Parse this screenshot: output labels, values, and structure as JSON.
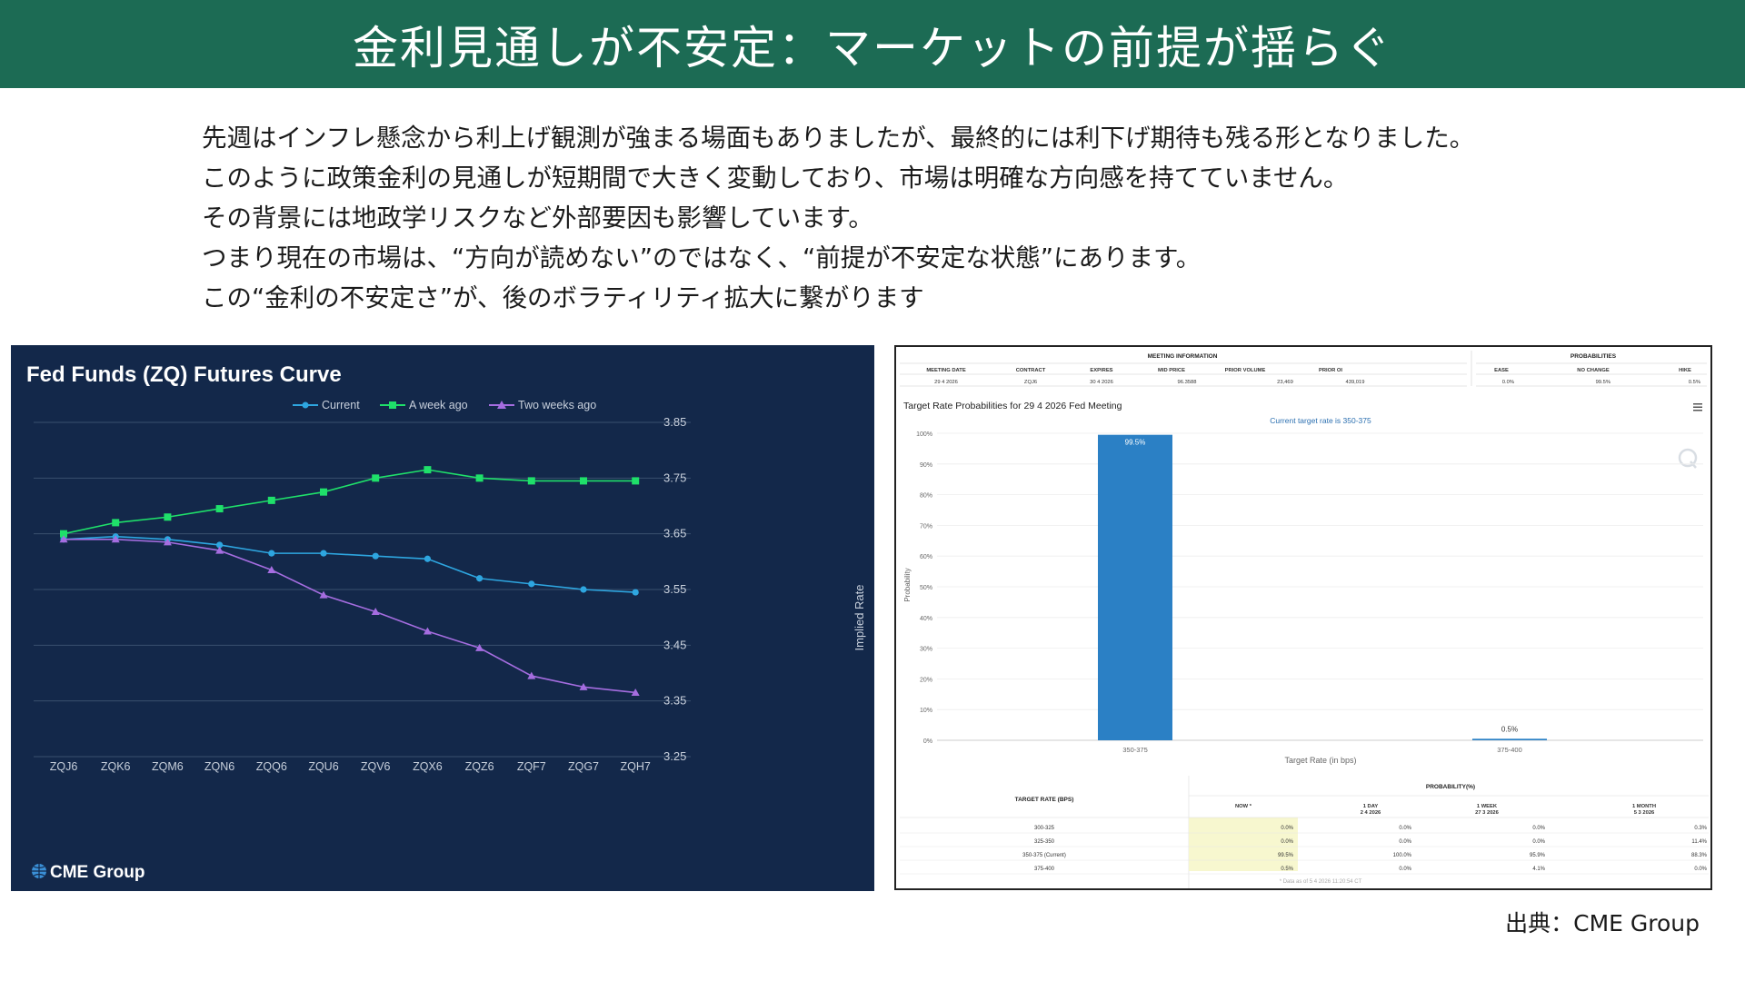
{
  "title": "金利見通しが不安定：マーケットの前提が揺らぐ",
  "paragraphs": [
    "先週はインフレ懸念から利上げ観測が強まる場面もありましたが、最終的には利下げ期待も残る形となりました。",
    "このように政策金利の見通しが短期間で大きく変動しており、市場は明確な方向感を持てていません。",
    "その背景には地政学リスクなど外部要因も影響しています。",
    "つまり現在の市場は、“方向が読めない”のではなく、“前提が不安定な状態”にあります。",
    "この“金利の不安定さ”が、後のボラティリティ拡大に繋がります"
  ],
  "source": "出典：CME Group",
  "colors": {
    "title_bar": "#1c6b54",
    "left_bg": "#13284a",
    "current": "#2ea6e0",
    "week": "#1fe06a",
    "twoweek": "#a56de0",
    "bar": "#2b80c5"
  },
  "chart_data": [
    {
      "type": "line",
      "title": "Fed Funds (ZQ) Futures Curve",
      "ylabel": "Implied Rate",
      "categories": [
        "ZQJ6",
        "ZQK6",
        "ZQM6",
        "ZQN6",
        "ZQQ6",
        "ZQU6",
        "ZQV6",
        "ZQX6",
        "ZQZ6",
        "ZQF7",
        "ZQG7",
        "ZQH7"
      ],
      "yticks": [
        3.85,
        3.75,
        3.65,
        3.55,
        3.45,
        3.35,
        3.25
      ],
      "ylim": [
        3.25,
        3.85
      ],
      "grid": true,
      "legend": "top-center",
      "series": [
        {
          "name": "Current",
          "values": [
            3.64,
            3.645,
            3.64,
            3.63,
            3.615,
            3.615,
            3.61,
            3.605,
            3.57,
            3.56,
            3.55,
            3.545
          ]
        },
        {
          "name": "A week ago",
          "values": [
            3.65,
            3.67,
            3.68,
            3.695,
            3.71,
            3.725,
            3.75,
            3.765,
            3.75,
            3.745,
            3.745,
            3.745
          ]
        },
        {
          "name": "Two weeks ago",
          "values": [
            3.64,
            3.64,
            3.635,
            3.62,
            3.585,
            3.54,
            3.51,
            3.475,
            3.445,
            3.395,
            3.375,
            3.365
          ]
        }
      ],
      "brand": "CME Group"
    },
    {
      "type": "bar",
      "title": "Target Rate Probabilities for 29 4 2026 Fed Meeting",
      "subtitle": "Current target rate is 350-375",
      "ylabel": "Probability",
      "xlabel": "Target Rate (in bps)",
      "categories": [
        "350-375",
        "375-400"
      ],
      "values": [
        99.5,
        0.5
      ],
      "value_labels": [
        "99.5%",
        "0.5%"
      ],
      "yticks": [
        "100%",
        "90%",
        "80%",
        "70%",
        "60%",
        "50%",
        "40%",
        "30%",
        "20%",
        "10%",
        "0%"
      ],
      "ylim": [
        0,
        100
      ]
    }
  ],
  "meeting_info": {
    "section_title": "MEETING INFORMATION",
    "headers": [
      "MEETING DATE",
      "CONTRACT",
      "EXPIRES",
      "MID PRICE",
      "PRIOR VOLUME",
      "PRIOR OI"
    ],
    "values": [
      "29 4 2026",
      "ZQJ6",
      "30 4 2026",
      "96.3588",
      "23,469",
      "439,019"
    ]
  },
  "probabilities": {
    "section_title": "PROBABILITIES",
    "headers": [
      "EASE",
      "NO CHANGE",
      "HIKE"
    ],
    "values": [
      "0.0%",
      "99.5%",
      "0.5%"
    ]
  },
  "prob_table": {
    "group_title": "PROBABILITY(%)",
    "rate_header": "TARGET RATE (BPS)",
    "col_headers": [
      {
        "line1": "NOW *",
        "line2": ""
      },
      {
        "line1": "1 DAY",
        "line2": "2 4 2026"
      },
      {
        "line1": "1 WEEK",
        "line2": "27 3 2026"
      },
      {
        "line1": "1 MONTH",
        "line2": "5 3 2026"
      }
    ],
    "rows": [
      [
        "300-325",
        "0.0%",
        "0.0%",
        "0.0%",
        "0.3%"
      ],
      [
        "325-350",
        "0.0%",
        "0.0%",
        "0.0%",
        "11.4%"
      ],
      [
        "350-375 (Current)",
        "99.5%",
        "100.0%",
        "95.9%",
        "88.3%"
      ],
      [
        "375-400",
        "0.5%",
        "0.0%",
        "4.1%",
        "0.0%"
      ]
    ],
    "footnote": "* Data as of 5 4 2026 11:20:54 CT"
  }
}
